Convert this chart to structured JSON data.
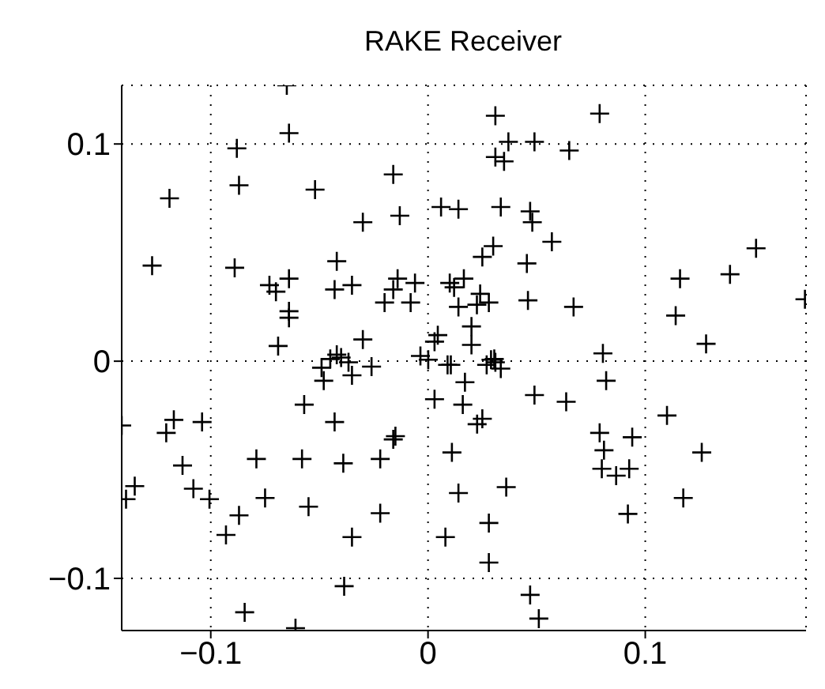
{
  "chart_data": {
    "type": "scatter",
    "title": "RAKE Receiver",
    "x": [
      -0.065,
      -0.064,
      -0.088,
      -0.087,
      -0.119,
      -0.052,
      -0.016,
      -0.013,
      -0.03,
      0.006,
      -0.127,
      -0.089,
      -0.042,
      -0.064,
      -0.073,
      -0.07,
      -0.043,
      -0.035,
      -0.014,
      -0.006,
      -0.016,
      -0.02,
      -0.008,
      -0.064,
      -0.064,
      -0.03,
      -0.069,
      0.0045,
      0.003,
      0.01,
      0.031,
      0.079,
      0.037,
      0.049,
      0.065,
      0.031,
      0.035,
      0.014,
      0.0335,
      0.047,
      0.048,
      0.057,
      0.03,
      0.025,
      0.0455,
      0.151,
      0.139,
      0.116,
      0.0165,
      0.012,
      0.024,
      0.028,
      0.0225,
      0.046,
      0.067,
      0.014,
      0.114,
      0.1735,
      0.02,
      0.128,
      0.02,
      0.0805,
      0.0305,
      -0.042,
      -0.045,
      -0.04,
      -0.0366,
      -0.049,
      -0.035,
      -0.026,
      -0.048,
      -0.0035,
      0.0001,
      0.009,
      0.003,
      -0.057,
      -0.043,
      -0.141,
      -0.117,
      -0.1205,
      -0.104,
      -0.015,
      -0.016,
      0.011,
      -0.113,
      -0.079,
      -0.058,
      -0.039,
      -0.022,
      -0.135,
      -0.139,
      -0.108,
      -0.1006,
      -0.075,
      -0.055,
      -0.087,
      -0.022,
      -0.093,
      -0.035,
      0.008,
      -0.0386,
      -0.0844,
      -0.061,
      0.0105,
      0.029,
      0.031,
      0.0335,
      0.027,
      0.017,
      0.082,
      0.049,
      0.0636,
      0.016,
      0.11,
      0.025,
      0.0226,
      0.079,
      0.094,
      0.081,
      0.126,
      0.08,
      0.0866,
      0.0926,
      0.014,
      0.036,
      0.1175,
      0.092,
      0.028,
      0.028,
      0.047,
      0.051
    ],
    "values": [
      0.127,
      0.105,
      0.098,
      0.081,
      0.075,
      0.079,
      0.086,
      0.067,
      0.064,
      0.071,
      0.044,
      0.043,
      0.046,
      0.038,
      0.035,
      0.032,
      0.033,
      0.035,
      0.038,
      0.036,
      0.033,
      0.027,
      0.027,
      0.023,
      0.02,
      0.01,
      0.007,
      0.012,
      0.009,
      0.036,
      0.113,
      0.114,
      0.101,
      0.101,
      0.097,
      0.094,
      0.092,
      0.07,
      0.071,
      0.069,
      0.064,
      0.055,
      0.053,
      0.048,
      0.045,
      0.052,
      0.04,
      0.038,
      0.038,
      0.034,
      0.031,
      0.027,
      0.026,
      0.028,
      0.025,
      0.025,
      0.021,
      0.0285,
      0.016,
      0.008,
      0.0075,
      0.0036,
      0.001,
      0.003,
      0.001,
      0.0017,
      -0.0005,
      -0.003,
      -0.0065,
      -0.0025,
      -0.009,
      0.0024,
      0.0007,
      -0.0017,
      -0.0175,
      -0.02,
      -0.028,
      -0.0296,
      -0.027,
      -0.033,
      -0.028,
      -0.0345,
      -0.036,
      -0.042,
      -0.048,
      -0.045,
      -0.045,
      -0.047,
      -0.045,
      -0.0575,
      -0.0635,
      -0.0587,
      -0.0635,
      -0.063,
      -0.067,
      -0.071,
      -0.07,
      -0.08,
      -0.081,
      -0.081,
      -0.1036,
      -0.1156,
      -0.1229,
      -0.0017,
      0.0007,
      -0.0005,
      -0.0034,
      -0.0017,
      -0.0097,
      -0.009,
      -0.0156,
      -0.0187,
      -0.02,
      -0.025,
      -0.0265,
      -0.029,
      -0.033,
      -0.035,
      -0.041,
      -0.042,
      -0.0495,
      -0.0527,
      -0.0495,
      -0.0607,
      -0.058,
      -0.063,
      -0.0703,
      -0.0745,
      -0.0927,
      -0.1076,
      -0.1185
    ],
    "color": "#000000",
    "marker": "cross",
    "grid": true,
    "xlim": [
      -0.141,
      0.174
    ],
    "xticks": [
      {
        "value": -0.1,
        "label": "−0.1"
      },
      0,
      0.1
    ],
    "ylim": [
      -0.124,
      0.127
    ],
    "yticks": [
      {
        "value": -0.1,
        "label": "−0.1"
      },
      0,
      0.1
    ]
  }
}
